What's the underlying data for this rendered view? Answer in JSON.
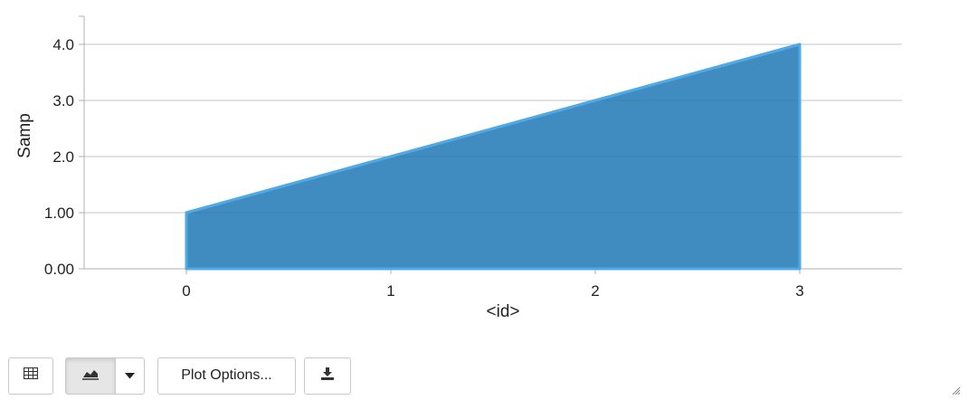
{
  "chart_data": {
    "type": "area",
    "x": [
      0,
      1,
      2,
      3
    ],
    "values": [
      1,
      2,
      3,
      4
    ],
    "xlabel": "<id>",
    "ylabel": "Samp",
    "xlim": [
      -0.5,
      3.5
    ],
    "ylim": [
      0,
      4.5
    ],
    "xticks": [
      0,
      1,
      2,
      3
    ],
    "xtick_labels": [
      "0",
      "1",
      "2",
      "3"
    ],
    "yticks": [
      0,
      1,
      2,
      3,
      4
    ],
    "ytick_labels": [
      "0.00",
      "1.00",
      "2.0",
      "3.0",
      "4.0"
    ],
    "grid": true,
    "fill_color": "#1f77b4",
    "line_color": "#4fa9e6"
  },
  "toolbar": {
    "table_icon": "table-icon",
    "chart_icon": "area-chart-icon",
    "caret_icon": "caret-down-icon",
    "plot_options_label": "Plot Options...",
    "download_icon": "download-icon"
  }
}
